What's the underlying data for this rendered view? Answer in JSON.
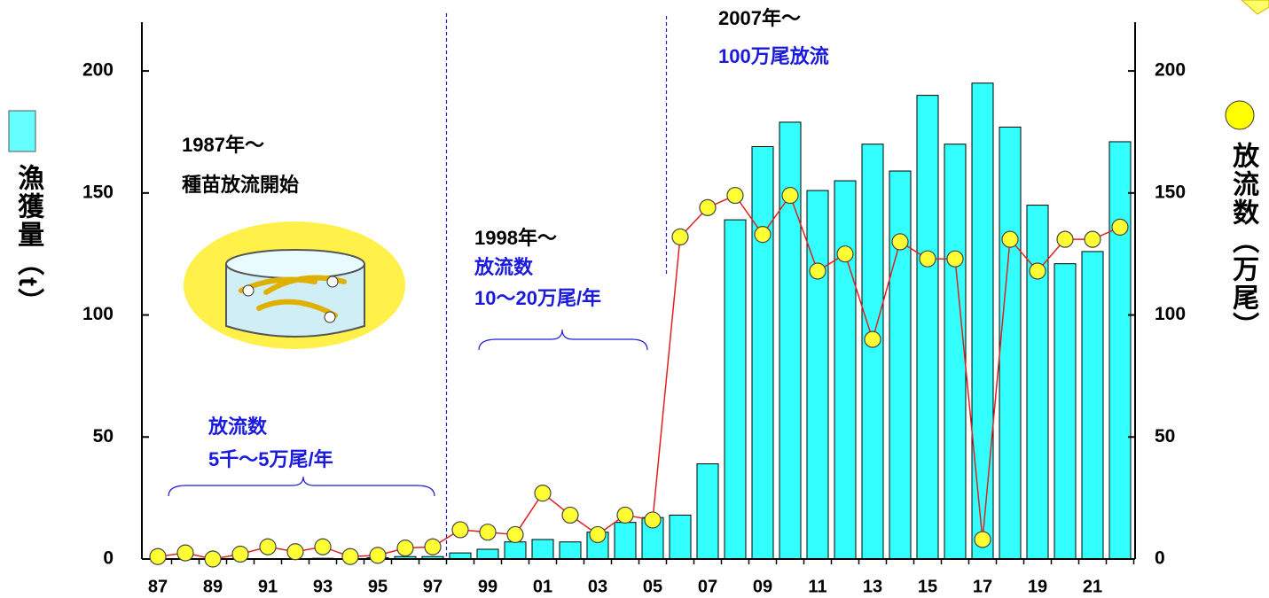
{
  "chart_data": {
    "type": "bar-line",
    "categories": [
      "87",
      null,
      "89",
      null,
      "91",
      null,
      "93",
      null,
      "95",
      null,
      "97",
      null,
      "99",
      null,
      "01",
      null,
      "03",
      null,
      "05",
      null,
      "07",
      null,
      "09",
      null,
      "11",
      null,
      "13",
      null,
      "15",
      null,
      "17",
      null,
      "19",
      null,
      "21",
      null
    ],
    "series": [
      {
        "name": "漁獲量（t）",
        "type": "bar",
        "color": "#33ffff",
        "values": [
          0,
          0,
          0,
          0,
          0,
          0,
          0.3,
          0,
          0.5,
          1,
          1,
          2.5,
          4,
          7,
          8,
          7,
          11,
          15,
          17,
          18,
          39,
          139,
          169,
          179,
          151,
          155,
          170,
          159,
          190,
          170,
          195,
          177,
          145,
          121,
          126,
          171
        ]
      },
      {
        "name": "放流数（万尾）",
        "type": "line",
        "axis": "y2",
        "color": "#ffff33",
        "line_color": "#e02020",
        "values": [
          1,
          2.5,
          0,
          2,
          5,
          3,
          5,
          1,
          1.5,
          4.5,
          5,
          12,
          11,
          10,
          27,
          18,
          10,
          18,
          16,
          132,
          144,
          149,
          133,
          149,
          118,
          125,
          90,
          130,
          123,
          123,
          8,
          131,
          118,
          131,
          131,
          136
        ]
      }
    ],
    "ylim": [
      0,
      220
    ],
    "yticks": [
      0,
      50,
      100,
      150,
      200
    ],
    "y2lim": [
      0,
      220
    ],
    "y2ticks": [
      0,
      50,
      100,
      150,
      200
    ],
    "annotations": [
      {
        "text": "1987年～",
        "color": "#000000"
      },
      {
        "text": "種苗放流開始",
        "color": "#000000"
      },
      {
        "text": "1998年～",
        "color": "#000000"
      },
      {
        "text": "放流数",
        "color": "#1a1adc"
      },
      {
        "text": "10～20万尾/年",
        "color": "#1a1adc"
      },
      {
        "text": "2007年～",
        "color": "#000000"
      },
      {
        "text": "100万尾放流",
        "color": "#1a1adc"
      },
      {
        "text": "放流数",
        "color": "#1a1adc"
      },
      {
        "text": "5千～5万尾/年",
        "color": "#1a1adc"
      }
    ]
  }
}
